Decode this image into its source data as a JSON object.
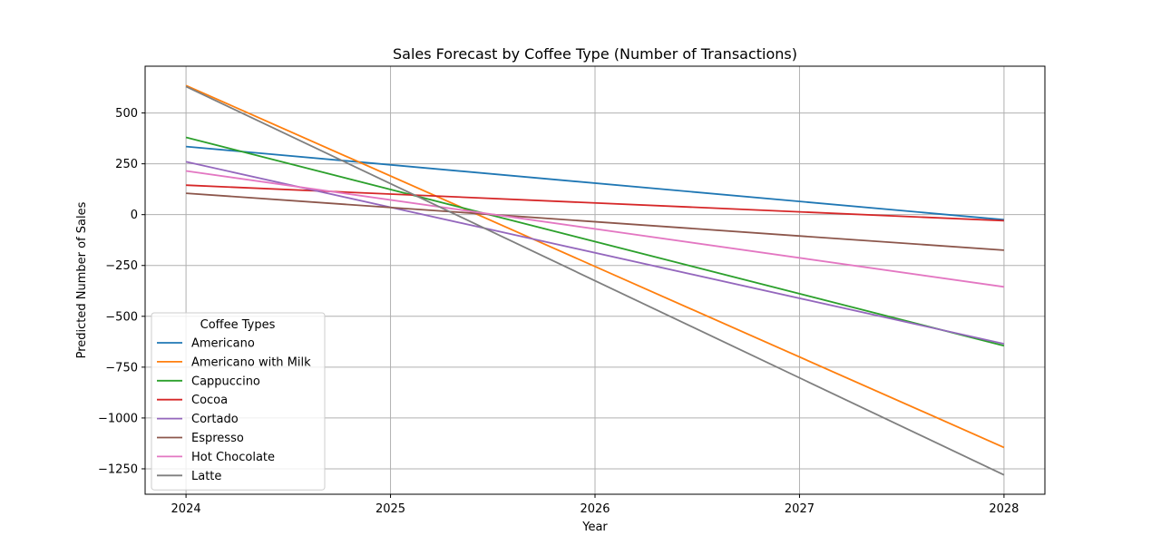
{
  "chart_data": {
    "type": "line",
    "title": "Sales Forecast by Coffee Type (Number of Transactions)",
    "xlabel": "Year",
    "ylabel": "Predicted Number of Sales",
    "x": [
      2024,
      2028
    ],
    "x_ticks": [
      2024,
      2025,
      2026,
      2027,
      2028
    ],
    "x_tick_labels": [
      "2024",
      "2025",
      "2026",
      "2027",
      "2028"
    ],
    "xlim": [
      2023.8,
      2028.2
    ],
    "y_ticks": [
      500,
      250,
      0,
      -250,
      -500,
      -750,
      -1000,
      -1250
    ],
    "y_tick_labels": [
      "500",
      "250",
      "0",
      "−250",
      "−500",
      "−750",
      "−1000",
      "−1250"
    ],
    "ylim": [
      -1375,
      730
    ],
    "grid": true,
    "legend": {
      "title": "Coffee Types",
      "placement": "lower-left"
    },
    "series": [
      {
        "name": "Americano",
        "color": "#1f77b4",
        "values": [
          335,
          -25
        ]
      },
      {
        "name": "Americano with Milk",
        "color": "#ff7f0e",
        "values": [
          635,
          -1145
        ]
      },
      {
        "name": "Cappuccino",
        "color": "#2ca02c",
        "values": [
          380,
          -645
        ]
      },
      {
        "name": "Cocoa",
        "color": "#d62728",
        "values": [
          145,
          -30
        ]
      },
      {
        "name": "Cortado",
        "color": "#9467bd",
        "values": [
          260,
          -635
        ]
      },
      {
        "name": "Espresso",
        "color": "#8c564b",
        "values": [
          105,
          -175
        ]
      },
      {
        "name": "Hot Chocolate",
        "color": "#e377c2",
        "values": [
          215,
          -355
        ]
      },
      {
        "name": "Latte",
        "color": "#7f7f7f",
        "values": [
          630,
          -1280
        ]
      }
    ]
  }
}
